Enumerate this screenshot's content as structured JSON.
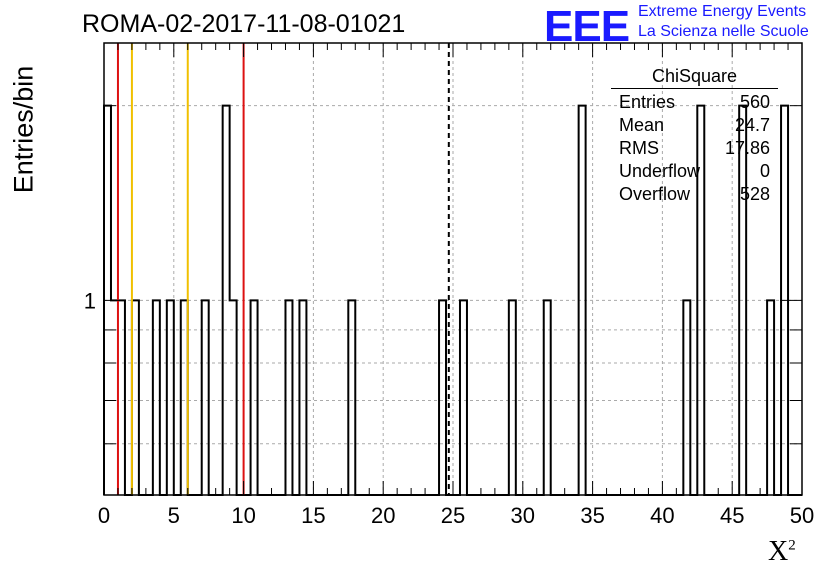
{
  "header": {
    "title": "ROMA-02-2017-11-08-01021",
    "logo_text": "EEE",
    "logo_line1": "Extreme Energy Events",
    "logo_line2": "La Scienza nelle Scuole"
  },
  "colors": {
    "red": "#dd1111",
    "yellow": "#f0c000",
    "hist": "#000000",
    "grid": "#aaaaaa"
  },
  "stats_box": {
    "title": "ChiSquare",
    "rows": [
      {
        "label": "Entries",
        "value": "560"
      },
      {
        "label": "Mean",
        "value": "24.7"
      },
      {
        "label": "RMS",
        "value": "17.86"
      },
      {
        "label": "Underflow",
        "value": "0"
      },
      {
        "label": "Overflow",
        "value": "528"
      }
    ]
  },
  "chart_data": {
    "type": "histogram",
    "title": "ROMA-02-2017-11-08-01021",
    "xlabel": "X",
    "xlabel_sup": "2",
    "ylabel": "Entries/bin",
    "xlim": [
      0,
      50
    ],
    "ylim": [
      0.5,
      2.5
    ],
    "yscale": "log",
    "bin_width": 0.5,
    "x_ticks": [
      0,
      5,
      10,
      15,
      20,
      25,
      30,
      35,
      40,
      45,
      50
    ],
    "y_tick_labels": [
      {
        "value": 1,
        "label": "1"
      }
    ],
    "grid": true,
    "bins": [
      {
        "x": 0.0,
        "y": 2
      },
      {
        "x": 0.5,
        "y": 1
      },
      {
        "x": 1.0,
        "y": 1
      },
      {
        "x": 2.0,
        "y": 1
      },
      {
        "x": 3.5,
        "y": 1
      },
      {
        "x": 4.5,
        "y": 1
      },
      {
        "x": 5.5,
        "y": 1
      },
      {
        "x": 7.0,
        "y": 1
      },
      {
        "x": 8.5,
        "y": 2
      },
      {
        "x": 9.0,
        "y": 1
      },
      {
        "x": 10.5,
        "y": 1
      },
      {
        "x": 13.0,
        "y": 1
      },
      {
        "x": 14.0,
        "y": 1
      },
      {
        "x": 17.5,
        "y": 1
      },
      {
        "x": 24.0,
        "y": 1
      },
      {
        "x": 25.5,
        "y": 1
      },
      {
        "x": 29.0,
        "y": 1
      },
      {
        "x": 31.5,
        "y": 1
      },
      {
        "x": 34.0,
        "y": 2
      },
      {
        "x": 41.5,
        "y": 1
      },
      {
        "x": 42.5,
        "y": 2
      },
      {
        "x": 45.5,
        "y": 2
      },
      {
        "x": 47.5,
        "y": 1
      },
      {
        "x": 48.5,
        "y": 2
      }
    ],
    "vertical_lines": [
      {
        "x": 1,
        "color": "red",
        "style": "solid"
      },
      {
        "x": 2,
        "color": "yellow",
        "style": "solid"
      },
      {
        "x": 6,
        "color": "yellow",
        "style": "solid"
      },
      {
        "x": 10,
        "color": "red",
        "style": "solid"
      },
      {
        "x": 24.7,
        "color": "black",
        "style": "dashed"
      }
    ]
  }
}
